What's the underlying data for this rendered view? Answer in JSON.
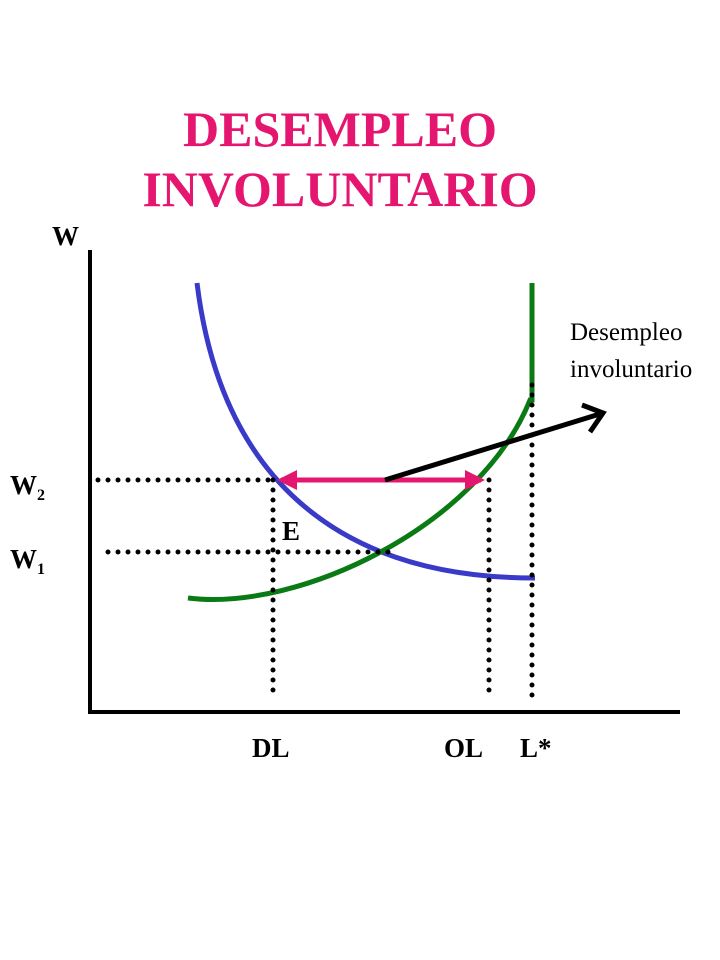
{
  "title": {
    "line1": "DESEMPLEO",
    "line2": "INVOLUNTARIO"
  },
  "axis": {
    "y_label": "W"
  },
  "annotation": {
    "line1": "Desempleo",
    "line2": "involuntario"
  },
  "labels": {
    "w2": {
      "main": "W",
      "sub": "2"
    },
    "w1": {
      "main": "W",
      "sub": "1"
    },
    "e": "E",
    "dl": "DL",
    "ol": "OL",
    "lstar": "L*"
  }
}
